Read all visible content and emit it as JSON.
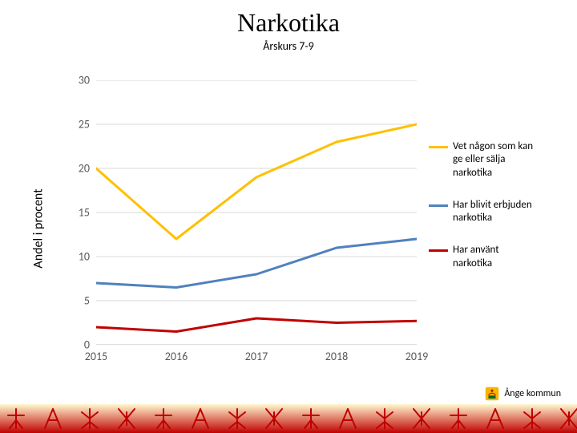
{
  "title": "Narkotika",
  "subtitle": "Årskurs 7-9",
  "ylabel": "Andel i procent",
  "kommun_label": "Ånge kommun",
  "chart": {
    "type": "line",
    "background_color": "#ffffff",
    "grid_color": "#d9d9d9",
    "axis_color": "#bfbfbf",
    "ylim": [
      0,
      30
    ],
    "ytick_step": 5,
    "yticks": [
      0,
      5,
      10,
      15,
      20,
      25,
      30
    ],
    "x_categories": [
      "2015",
      "2016",
      "2017",
      "2018",
      "2019"
    ],
    "line_width": 3,
    "series": [
      {
        "name": "Vet någon som kan ge eller sälja narkotika",
        "color": "#ffc000",
        "values": [
          20,
          12,
          19,
          23,
          25
        ]
      },
      {
        "name": "Har blivit erbjuden narkotika",
        "color": "#4f81bd",
        "values": [
          7,
          6.5,
          8,
          11,
          12
        ]
      },
      {
        "name": "Har använt narkotika",
        "color": "#c00000",
        "values": [
          2,
          1.5,
          3,
          2.5,
          2.7
        ]
      }
    ],
    "title_fontsize": 32,
    "subtitle_fontsize": 14,
    "ylabel_fontsize": 16,
    "tick_fontsize": 14,
    "legend_fontsize": 13
  },
  "footer": {
    "gradient_from": "#fff8d0",
    "gradient_to": "#c00000",
    "glyph_color": "#c00000",
    "glyph_stroke_width": 2
  }
}
